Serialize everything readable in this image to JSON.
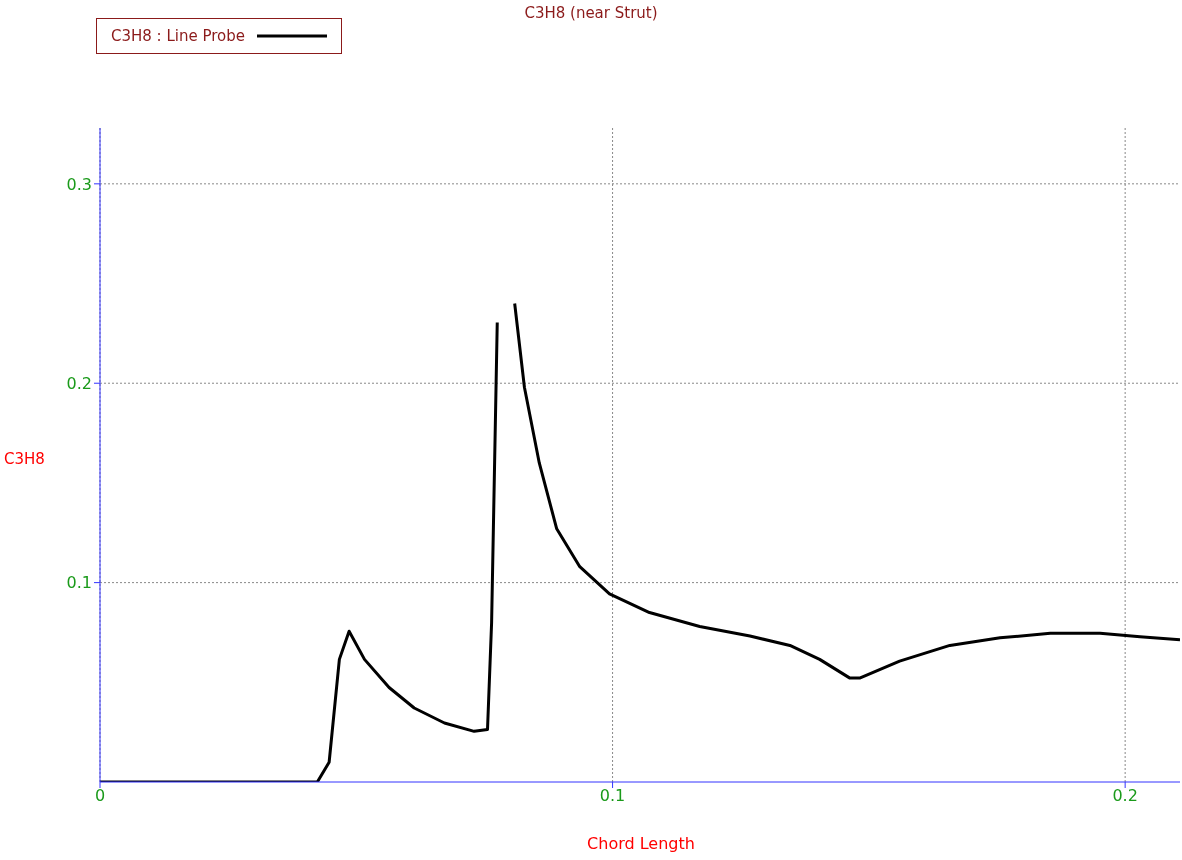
{
  "chart_data": {
    "type": "line",
    "title": "C3H8 (near Strut)",
    "xlabel": "Chord Length",
    "ylabel": "C3H8",
    "x": [
      0,
      0.0424,
      0.0447,
      0.0467,
      0.0486,
      0.0516,
      0.0564,
      0.0613,
      0.0672,
      0.073,
      0.0756,
      0.0764,
      0.0775,
      0.0785,
      0.0793,
      0.0809,
      0.0828,
      0.0857,
      0.0891,
      0.0936,
      0.0994,
      0.1072,
      0.117,
      0.1268,
      0.1346,
      0.1404,
      0.1463,
      0.1482,
      0.156,
      0.1658,
      0.1756,
      0.1854,
      0.1951,
      0.2029,
      0.2107
    ],
    "series": [
      {
        "name": "C3H8 : Line Probe",
        "color": "#000000",
        "values": [
          0,
          0,
          0.0099,
          0.0615,
          0.0756,
          0.0615,
          0.0474,
          0.0371,
          0.0296,
          0.0254,
          0.0263,
          0.08,
          0.2305,
          null,
          null,
          0.24,
          0.198,
          0.16,
          0.127,
          0.108,
          0.0944,
          0.085,
          0.078,
          0.0732,
          0.0685,
          0.0615,
          0.0521,
          0.0521,
          0.0606,
          0.0685,
          0.0723,
          0.0746,
          0.0746,
          0.0728,
          0.0714
        ]
      }
    ],
    "xlim": [
      0,
      0.2107
    ],
    "xticks": [
      0,
      0.1,
      0.2
    ],
    "ylim": [
      0,
      0.328
    ],
    "yticks": [
      0.1,
      0.2,
      0.3
    ],
    "grid": true,
    "legend": "top left",
    "marker": "none",
    "line_style": "solid"
  }
}
